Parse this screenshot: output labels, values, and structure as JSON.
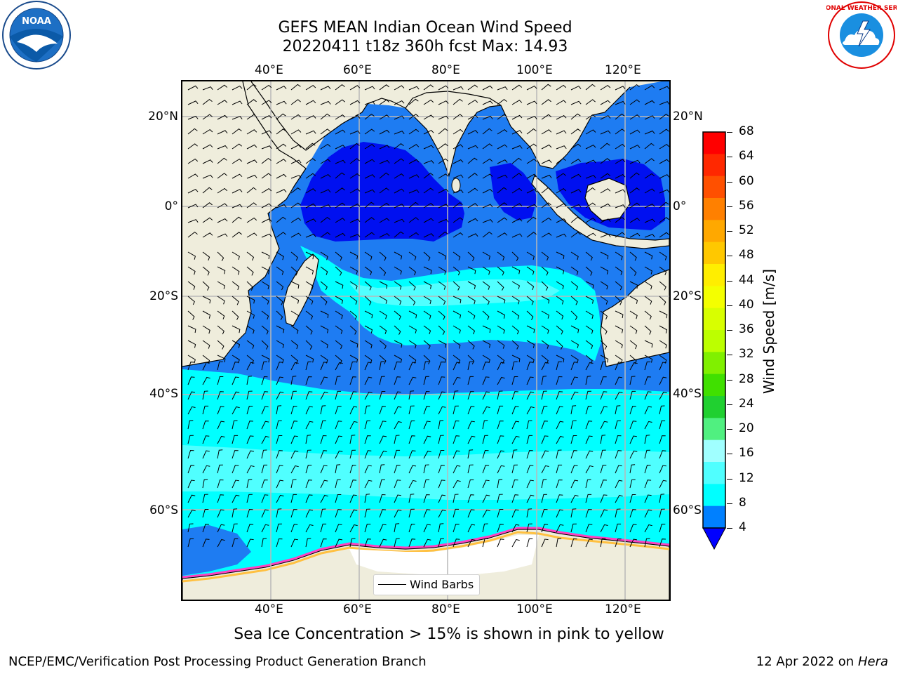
{
  "title_line1": "GEFS MEAN Indian Ocean Wind Speed",
  "title_line2": "20220411 t18z 360h fcst   Max: 14.93",
  "lon_labels": [
    "40°E",
    "60°E",
    "80°E",
    "100°E",
    "120°E"
  ],
  "lat_labels_left": [
    "20°N",
    "0°",
    "20°S",
    "40°S",
    "60°S"
  ],
  "lat_labels_right": [
    "20°N",
    "0°",
    "20°S",
    "40°S",
    "60°S"
  ],
  "legend_label": "Wind Barbs",
  "colorbar": {
    "label": "Wind Speed [m/s]",
    "ticks": [
      "68",
      "64",
      "60",
      "56",
      "52",
      "48",
      "44",
      "40",
      "36",
      "32",
      "28",
      "24",
      "20",
      "16",
      "12",
      "8",
      "4"
    ],
    "colors": [
      "#ff0000",
      "#ff2800",
      "#ff5000",
      "#ff8000",
      "#ffa800",
      "#ffc800",
      "#ffee00",
      "#f4ff00",
      "#d8ff00",
      "#bcff00",
      "#80f000",
      "#40e000",
      "#20d030",
      "#50f080",
      "#a0ffff",
      "#50ffff",
      "#00ffff",
      "#0080ff"
    ],
    "underflow_color": "#0000ff"
  },
  "caption": "Sea Ice Concentration > 15% is shown in pink to yellow",
  "footer_left": "NCEP/EMC/Verification Post Processing Product Generation Branch",
  "footer_right_prefix": "12 Apr 2022 on ",
  "footer_right_host": "Hera",
  "logo_left": "NOAA",
  "logo_left_ring": "NATIONAL OCEANIC AND ATMOSPHERIC ADMINISTRATION · U.S. DEPARTMENT OF COMMERCE",
  "logo_right_ring": "NATIONAL WEATHER SERVICE"
}
